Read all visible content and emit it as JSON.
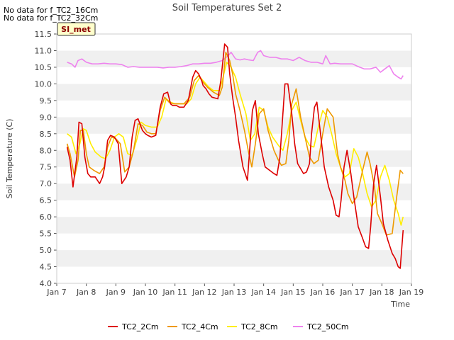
{
  "notices": [
    "No data for f_TC2_16Cm",
    "No data for f_TC2_32Cm"
  ],
  "site_badge": "SI_met",
  "chart_data": {
    "type": "line",
    "title": "Soil Temperatures Set 2",
    "xlabel": "Time",
    "ylabel": "Soil Temperature (C)",
    "xlim": [
      0,
      12
    ],
    "ylim": [
      4.0,
      11.5
    ],
    "x_ticks": [
      0,
      1,
      2,
      3,
      4,
      5,
      6,
      7,
      8,
      9,
      10,
      11,
      12
    ],
    "x_tick_labels": [
      "Jan 7",
      "Jan 8",
      "Jan 9",
      "Jan 10",
      "Jan 11",
      "Jan 12",
      "Jan 13",
      "Jan 14",
      "Jan 15",
      "Jan 16",
      "Jan 17",
      "Jan 18",
      "Jan 19"
    ],
    "y_ticks": [
      4.0,
      4.5,
      5.0,
      5.5,
      6.0,
      6.5,
      7.0,
      7.5,
      8.0,
      8.5,
      9.0,
      9.5,
      10.0,
      10.5,
      11.0,
      11.5
    ],
    "y_tick_labels": [
      "4.0",
      "4.5",
      "5.0",
      "5.5",
      "6.0",
      "6.5",
      "7.0",
      "7.5",
      "8.0",
      "8.5",
      "9.0",
      "9.5",
      "10.0",
      "10.5",
      "11.0",
      "11.5"
    ],
    "grid": "horizontal alternating bands",
    "legend_position": "bottom",
    "series": [
      {
        "name": "TC2_2Cm",
        "color": "#dd0000",
        "x": [
          0.35,
          0.45,
          0.55,
          0.68,
          0.75,
          0.85,
          0.95,
          1.05,
          1.15,
          1.3,
          1.45,
          1.55,
          1.62,
          1.72,
          1.82,
          1.95,
          2.08,
          2.2,
          2.35,
          2.45,
          2.55,
          2.65,
          2.75,
          2.9,
          3.0,
          3.08,
          3.2,
          3.35,
          3.5,
          3.62,
          3.75,
          3.85,
          3.92,
          4.05,
          4.15,
          4.3,
          4.45,
          4.6,
          4.7,
          4.8,
          4.9,
          4.95,
          5.05,
          5.15,
          5.25,
          5.45,
          5.55,
          5.68,
          5.78,
          5.85,
          5.95,
          6.05,
          6.15,
          6.3,
          6.45,
          6.55,
          6.62,
          6.72,
          6.82,
          6.95,
          7.05,
          7.2,
          7.35,
          7.45,
          7.55,
          7.62,
          7.72,
          7.82,
          7.95,
          8.05,
          8.15,
          8.35,
          8.45,
          8.55,
          8.62,
          8.72,
          8.8,
          8.95,
          9.05,
          9.2,
          9.35,
          9.45,
          9.55,
          9.62,
          9.72,
          9.82,
          9.95,
          10.05,
          10.2,
          10.35,
          10.45,
          10.55,
          10.62,
          10.72,
          10.82,
          10.95,
          11.05,
          11.2,
          11.35,
          11.45,
          11.55,
          11.62,
          11.72
        ],
        "values": [
          8.1,
          7.7,
          6.9,
          7.8,
          8.85,
          8.8,
          7.8,
          7.3,
          7.2,
          7.2,
          7.0,
          7.2,
          7.5,
          8.3,
          8.45,
          8.4,
          8.2,
          7.0,
          7.2,
          7.5,
          8.4,
          8.9,
          8.95,
          8.6,
          8.5,
          8.45,
          8.4,
          8.45,
          9.3,
          9.7,
          9.75,
          9.4,
          9.35,
          9.35,
          9.3,
          9.3,
          9.5,
          10.2,
          10.4,
          10.3,
          10.1,
          9.95,
          9.85,
          9.7,
          9.6,
          9.55,
          10.1,
          11.2,
          11.1,
          10.3,
          9.6,
          9.0,
          8.3,
          7.5,
          7.1,
          8.3,
          9.2,
          9.5,
          8.5,
          7.9,
          7.5,
          7.4,
          7.3,
          7.25,
          7.8,
          8.7,
          10.0,
          10.0,
          9.1,
          8.2,
          7.6,
          7.3,
          7.35,
          7.6,
          8.5,
          9.3,
          9.45,
          8.3,
          7.5,
          6.9,
          6.5,
          6.05,
          6.0,
          6.5,
          7.5,
          8.0,
          7.3,
          6.6,
          5.7,
          5.35,
          5.1,
          5.05,
          5.7,
          7.0,
          7.55,
          6.6,
          5.8,
          5.3,
          4.9,
          4.75,
          4.5,
          4.45,
          5.6
        ]
      },
      {
        "name": "TC2_4Cm",
        "color": "#ee9900",
        "x": [
          0.35,
          0.45,
          0.6,
          0.72,
          0.8,
          0.9,
          1.0,
          1.1,
          1.25,
          1.45,
          1.6,
          1.72,
          1.85,
          2.0,
          2.15,
          2.3,
          2.45,
          2.6,
          2.75,
          2.9,
          3.05,
          3.2,
          3.35,
          3.5,
          3.65,
          3.8,
          3.95,
          4.1,
          4.3,
          4.5,
          4.65,
          4.8,
          4.95,
          5.1,
          5.3,
          5.5,
          5.6,
          5.72,
          5.85,
          5.95,
          6.05,
          6.2,
          6.35,
          6.5,
          6.6,
          6.72,
          6.85,
          7.0,
          7.15,
          7.35,
          7.5,
          7.6,
          7.75,
          7.85,
          7.95,
          8.1,
          8.25,
          8.45,
          8.55,
          8.7,
          8.85,
          9.0,
          9.15,
          9.35,
          9.5,
          9.6,
          9.75,
          9.85,
          10.0,
          10.15,
          10.35,
          10.5,
          10.6,
          10.75,
          10.85,
          11.0,
          11.15,
          11.35,
          11.5,
          11.62,
          11.72
        ],
        "values": [
          8.2,
          7.9,
          7.2,
          7.7,
          8.6,
          8.6,
          7.9,
          7.5,
          7.4,
          7.3,
          7.5,
          8.1,
          8.4,
          8.35,
          8.2,
          7.35,
          7.5,
          8.0,
          8.8,
          8.75,
          8.55,
          8.5,
          8.5,
          9.2,
          9.6,
          9.45,
          9.4,
          9.4,
          9.4,
          9.6,
          10.1,
          10.25,
          10.05,
          9.9,
          9.75,
          9.65,
          9.9,
          10.95,
          10.7,
          10.3,
          9.7,
          9.2,
          8.6,
          7.9,
          7.5,
          8.2,
          9.1,
          9.25,
          8.6,
          8.0,
          7.7,
          7.55,
          7.6,
          8.3,
          9.4,
          9.85,
          9.0,
          8.2,
          7.8,
          7.6,
          7.7,
          8.5,
          9.25,
          9.0,
          7.9,
          7.5,
          7.1,
          6.7,
          6.4,
          6.6,
          7.4,
          7.95,
          7.6,
          6.9,
          6.1,
          5.8,
          5.45,
          5.5,
          6.6,
          7.4,
          7.3
        ]
      },
      {
        "name": "TC2_8Cm",
        "color": "#ffee00",
        "x": [
          0.35,
          0.5,
          0.65,
          0.78,
          0.9,
          1.0,
          1.15,
          1.3,
          1.5,
          1.65,
          1.8,
          1.95,
          2.1,
          2.25,
          2.4,
          2.55,
          2.7,
          2.85,
          3.0,
          3.2,
          3.4,
          3.55,
          3.7,
          3.85,
          4.0,
          4.2,
          4.4,
          4.55,
          4.7,
          4.85,
          5.0,
          5.15,
          5.3,
          5.5,
          5.6,
          5.75,
          5.9,
          6.05,
          6.2,
          6.4,
          6.55,
          6.7,
          6.85,
          7.0,
          7.15,
          7.3,
          7.5,
          7.65,
          7.8,
          7.95,
          8.1,
          8.25,
          8.4,
          8.55,
          8.7,
          8.85,
          9.0,
          9.15,
          9.3,
          9.45,
          9.6,
          9.75,
          9.9,
          10.05,
          10.2,
          10.35,
          10.5,
          10.65,
          10.8,
          10.95,
          11.1,
          11.25,
          11.4,
          11.55,
          11.65,
          11.72
        ],
        "values": [
          8.5,
          8.4,
          7.9,
          8.2,
          8.65,
          8.6,
          8.2,
          7.95,
          7.8,
          7.75,
          8.0,
          8.4,
          8.5,
          8.4,
          7.9,
          7.85,
          8.3,
          8.85,
          8.75,
          8.7,
          8.7,
          9.0,
          9.55,
          9.45,
          9.4,
          9.4,
          9.4,
          9.55,
          10.0,
          10.2,
          10.05,
          9.9,
          9.8,
          9.8,
          10.1,
          10.65,
          10.5,
          10.2,
          9.7,
          9.1,
          8.3,
          8.5,
          9.3,
          9.2,
          8.7,
          8.4,
          8.15,
          8.0,
          8.5,
          9.2,
          9.45,
          8.9,
          8.4,
          8.15,
          8.1,
          8.7,
          9.2,
          9.0,
          8.5,
          7.9,
          7.5,
          7.2,
          7.3,
          8.05,
          7.8,
          7.3,
          6.7,
          6.3,
          6.5,
          7.2,
          7.55,
          7.1,
          6.5,
          6.1,
          5.75,
          6.0
        ]
      },
      {
        "name": "TC2_50Cm",
        "color": "#ee82ee",
        "x": [
          0.35,
          0.5,
          0.62,
          0.72,
          0.85,
          1.0,
          1.2,
          1.4,
          1.6,
          1.8,
          2.0,
          2.2,
          2.4,
          2.6,
          2.8,
          3.0,
          3.2,
          3.4,
          3.6,
          3.8,
          4.0,
          4.2,
          4.4,
          4.6,
          4.8,
          5.0,
          5.2,
          5.4,
          5.6,
          5.8,
          5.9,
          6.05,
          6.2,
          6.35,
          6.5,
          6.65,
          6.8,
          6.9,
          7.0,
          7.2,
          7.4,
          7.6,
          7.8,
          8.0,
          8.2,
          8.4,
          8.6,
          8.8,
          9.0,
          9.1,
          9.25,
          9.4,
          9.6,
          9.8,
          10.0,
          10.2,
          10.4,
          10.6,
          10.8,
          10.95,
          11.1,
          11.25,
          11.4,
          11.55,
          11.65,
          11.72
        ],
        "values": [
          10.65,
          10.6,
          10.5,
          10.7,
          10.75,
          10.65,
          10.6,
          10.6,
          10.62,
          10.6,
          10.6,
          10.58,
          10.5,
          10.52,
          10.5,
          10.5,
          10.5,
          10.5,
          10.48,
          10.5,
          10.5,
          10.52,
          10.55,
          10.6,
          10.6,
          10.62,
          10.62,
          10.65,
          10.7,
          10.85,
          10.95,
          10.75,
          10.72,
          10.75,
          10.72,
          10.7,
          10.95,
          11.0,
          10.85,
          10.8,
          10.8,
          10.75,
          10.75,
          10.7,
          10.8,
          10.7,
          10.65,
          10.65,
          10.6,
          10.85,
          10.6,
          10.62,
          10.6,
          10.6,
          10.6,
          10.52,
          10.45,
          10.45,
          10.5,
          10.35,
          10.45,
          10.55,
          10.3,
          10.2,
          10.15,
          10.25
        ]
      }
    ]
  }
}
